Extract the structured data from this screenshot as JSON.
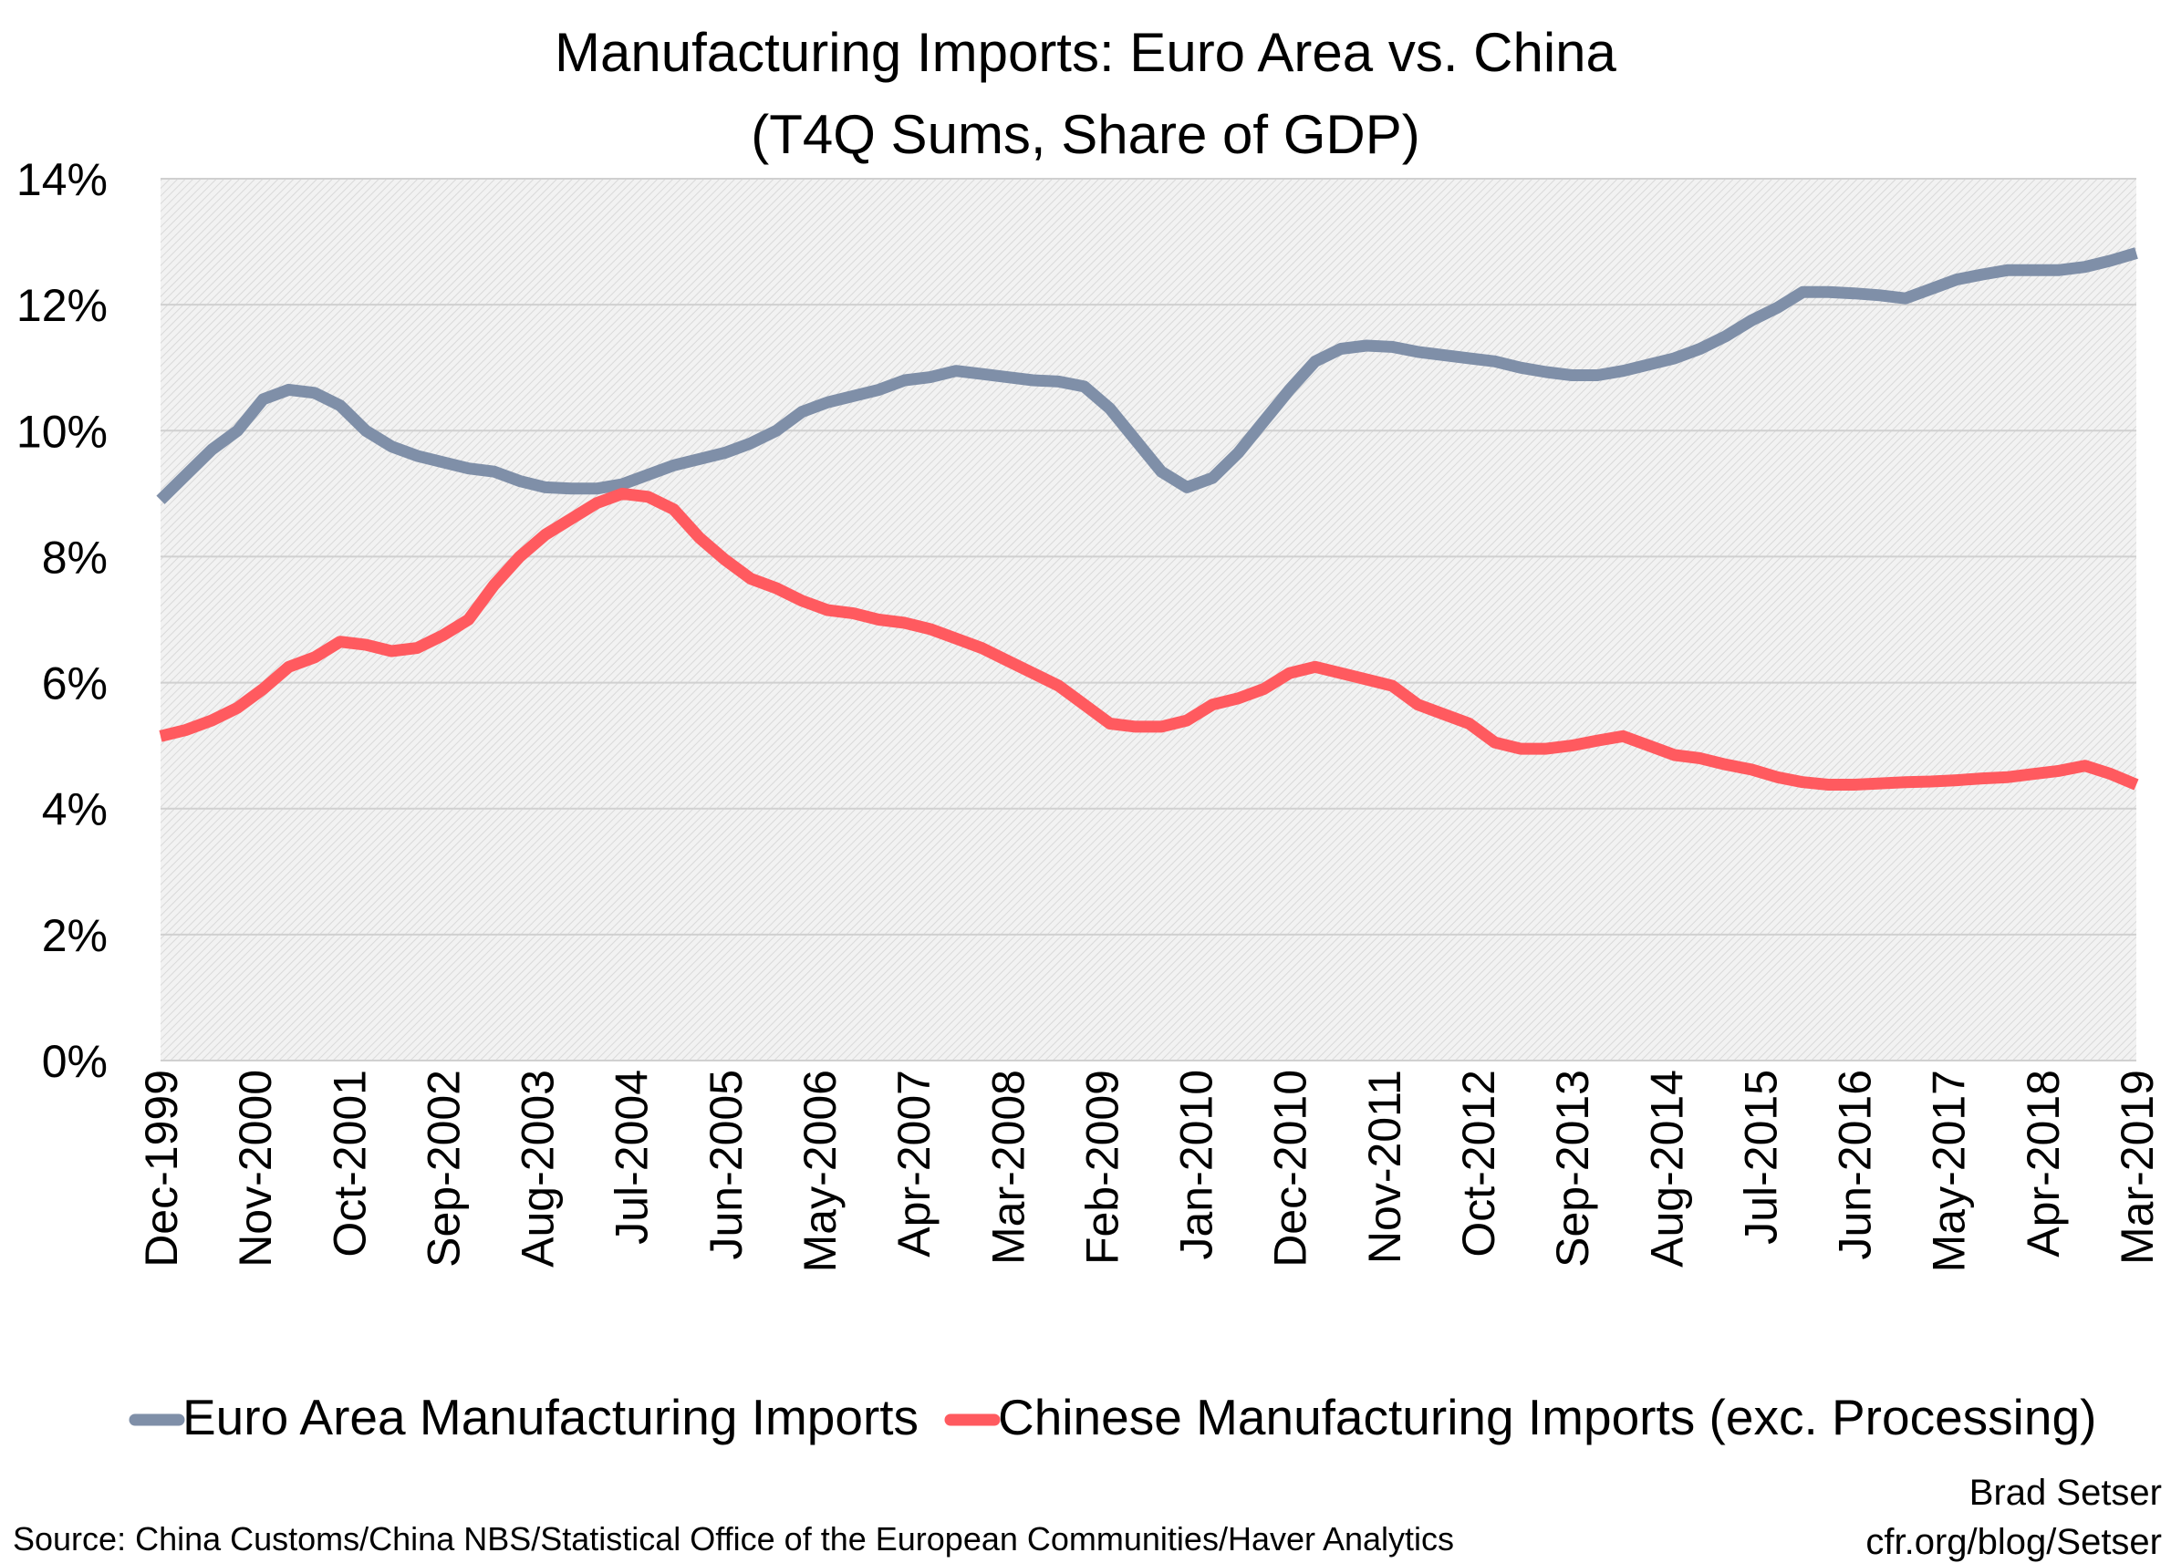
{
  "chart_data": {
    "type": "line",
    "title_lines": [
      "Manufacturing Imports: Euro Area vs. China",
      "(T4Q Sums, Share of GDP)"
    ],
    "ylim": [
      0,
      14
    ],
    "y_ticks": [
      "0%",
      "2%",
      "4%",
      "6%",
      "8%",
      "10%",
      "12%",
      "14%"
    ],
    "y_tick_values": [
      0,
      2,
      4,
      6,
      8,
      10,
      12,
      14
    ],
    "x_ticks": [
      "Dec-1999",
      "Nov-2000",
      "Oct-2001",
      "Sep-2002",
      "Aug-2003",
      "Jul-2004",
      "Jun-2005",
      "May-2006",
      "Apr-2007",
      "Mar-2008",
      "Feb-2009",
      "Jan-2010",
      "Dec-2010",
      "Nov-2011",
      "Oct-2012",
      "Sep-2013",
      "Aug-2014",
      "Jul-2015",
      "Jun-2016",
      "May-2017",
      "Apr-2018",
      "Mar-2019"
    ],
    "x_tick_indices": [
      0,
      11,
      22,
      33,
      44,
      55,
      66,
      77,
      88,
      99,
      110,
      121,
      132,
      143,
      154,
      165,
      176,
      187,
      198,
      209,
      220,
      231
    ],
    "x_start": "Dec-1999",
    "x_end": "Mar-2019",
    "x_frequency": "monthly",
    "grid": true,
    "legend_position": "bottom",
    "series": [
      {
        "name": "Euro Area Manufacturing Imports",
        "color": "#7f8fa8",
        "points": [
          [
            0,
            8.9
          ],
          [
            3,
            9.3
          ],
          [
            6,
            9.7
          ],
          [
            9,
            10.0
          ],
          [
            12,
            10.5
          ],
          [
            15,
            10.65
          ],
          [
            18,
            10.6
          ],
          [
            21,
            10.4
          ],
          [
            24,
            10.0
          ],
          [
            27,
            9.75
          ],
          [
            30,
            9.6
          ],
          [
            33,
            9.5
          ],
          [
            36,
            9.4
          ],
          [
            39,
            9.35
          ],
          [
            42,
            9.2
          ],
          [
            45,
            9.1
          ],
          [
            48,
            9.08
          ],
          [
            51,
            9.08
          ],
          [
            54,
            9.15
          ],
          [
            57,
            9.3
          ],
          [
            60,
            9.45
          ],
          [
            63,
            9.55
          ],
          [
            66,
            9.65
          ],
          [
            69,
            9.8
          ],
          [
            72,
            10.0
          ],
          [
            75,
            10.3
          ],
          [
            78,
            10.45
          ],
          [
            81,
            10.55
          ],
          [
            84,
            10.65
          ],
          [
            87,
            10.8
          ],
          [
            90,
            10.85
          ],
          [
            93,
            10.95
          ],
          [
            96,
            10.9
          ],
          [
            99,
            10.85
          ],
          [
            102,
            10.8
          ],
          [
            105,
            10.78
          ],
          [
            108,
            10.7
          ],
          [
            111,
            10.35
          ],
          [
            114,
            9.85
          ],
          [
            117,
            9.35
          ],
          [
            120,
            9.1
          ],
          [
            123,
            9.25
          ],
          [
            126,
            9.65
          ],
          [
            129,
            10.15
          ],
          [
            132,
            10.65
          ],
          [
            135,
            11.1
          ],
          [
            138,
            11.3
          ],
          [
            141,
            11.35
          ],
          [
            144,
            11.33
          ],
          [
            147,
            11.25
          ],
          [
            150,
            11.2
          ],
          [
            153,
            11.15
          ],
          [
            156,
            11.1
          ],
          [
            159,
            11.0
          ],
          [
            162,
            10.93
          ],
          [
            165,
            10.88
          ],
          [
            168,
            10.88
          ],
          [
            171,
            10.95
          ],
          [
            174,
            11.05
          ],
          [
            177,
            11.15
          ],
          [
            180,
            11.3
          ],
          [
            183,
            11.5
          ],
          [
            186,
            11.75
          ],
          [
            189,
            11.95
          ],
          [
            192,
            12.2
          ],
          [
            195,
            12.2
          ],
          [
            198,
            12.18
          ],
          [
            201,
            12.15
          ],
          [
            204,
            12.1
          ],
          [
            207,
            12.25
          ],
          [
            210,
            12.4
          ],
          [
            213,
            12.48
          ],
          [
            216,
            12.55
          ],
          [
            219,
            12.55
          ],
          [
            222,
            12.55
          ],
          [
            225,
            12.6
          ],
          [
            228,
            12.7
          ],
          [
            231,
            12.82
          ]
        ]
      },
      {
        "name": "Chinese Manufacturing Imports (exc. Processing)",
        "color": "#ff5a5f",
        "points": [
          [
            0,
            5.15
          ],
          [
            3,
            5.25
          ],
          [
            6,
            5.4
          ],
          [
            9,
            5.6
          ],
          [
            12,
            5.9
          ],
          [
            15,
            6.25
          ],
          [
            18,
            6.4
          ],
          [
            21,
            6.65
          ],
          [
            24,
            6.6
          ],
          [
            27,
            6.5
          ],
          [
            30,
            6.55
          ],
          [
            33,
            6.75
          ],
          [
            36,
            7.0
          ],
          [
            39,
            7.55
          ],
          [
            42,
            8.0
          ],
          [
            45,
            8.35
          ],
          [
            48,
            8.6
          ],
          [
            51,
            8.85
          ],
          [
            54,
            9.0
          ],
          [
            57,
            8.95
          ],
          [
            60,
            8.75
          ],
          [
            63,
            8.3
          ],
          [
            66,
            7.95
          ],
          [
            69,
            7.65
          ],
          [
            72,
            7.5
          ],
          [
            75,
            7.3
          ],
          [
            78,
            7.15
          ],
          [
            81,
            7.1
          ],
          [
            84,
            7.0
          ],
          [
            87,
            6.95
          ],
          [
            90,
            6.85
          ],
          [
            93,
            6.7
          ],
          [
            96,
            6.55
          ],
          [
            99,
            6.35
          ],
          [
            102,
            6.15
          ],
          [
            105,
            5.95
          ],
          [
            108,
            5.65
          ],
          [
            111,
            5.35
          ],
          [
            114,
            5.3
          ],
          [
            117,
            5.3
          ],
          [
            120,
            5.4
          ],
          [
            123,
            5.65
          ],
          [
            126,
            5.75
          ],
          [
            129,
            5.9
          ],
          [
            132,
            6.15
          ],
          [
            135,
            6.25
          ],
          [
            138,
            6.15
          ],
          [
            141,
            6.05
          ],
          [
            144,
            5.95
          ],
          [
            147,
            5.65
          ],
          [
            150,
            5.5
          ],
          [
            153,
            5.35
          ],
          [
            156,
            5.05
          ],
          [
            159,
            4.95
          ],
          [
            162,
            4.95
          ],
          [
            165,
            5.0
          ],
          [
            168,
            5.08
          ],
          [
            171,
            5.15
          ],
          [
            174,
            5.0
          ],
          [
            177,
            4.85
          ],
          [
            180,
            4.8
          ],
          [
            183,
            4.7
          ],
          [
            186,
            4.62
          ],
          [
            189,
            4.5
          ],
          [
            192,
            4.42
          ],
          [
            195,
            4.38
          ],
          [
            198,
            4.38
          ],
          [
            201,
            4.4
          ],
          [
            204,
            4.42
          ],
          [
            207,
            4.43
          ],
          [
            210,
            4.45
          ],
          [
            213,
            4.48
          ],
          [
            216,
            4.5
          ],
          [
            219,
            4.55
          ],
          [
            222,
            4.6
          ],
          [
            225,
            4.68
          ],
          [
            228,
            4.55
          ],
          [
            231,
            4.38
          ]
        ]
      }
    ]
  },
  "source_text": "Source: China Customs/China NBS/Statistical Office of the European Communities/Haver Analytics",
  "credit_lines": [
    "Brad Setser",
    "cfr.org/blog/Setser"
  ]
}
